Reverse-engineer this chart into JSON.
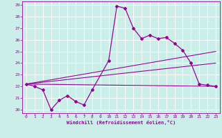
{
  "xlabel": "Windchill (Refroidissement éolien,°C)",
  "ylabel": "",
  "xlim": [
    -0.5,
    23.5
  ],
  "ylim": [
    19.7,
    29.3
  ],
  "yticks": [
    20,
    21,
    22,
    23,
    24,
    25,
    26,
    27,
    28,
    29
  ],
  "xticks": [
    0,
    1,
    2,
    3,
    4,
    5,
    6,
    7,
    8,
    9,
    10,
    11,
    12,
    13,
    14,
    15,
    16,
    17,
    18,
    19,
    20,
    21,
    22,
    23
  ],
  "bg_color": "#cceee8",
  "line_color": "#990099",
  "grid_color": "#ffffff",
  "line1_x": [
    0,
    1,
    2,
    3,
    4,
    5,
    6,
    7,
    8,
    10,
    11,
    12,
    13,
    14,
    15,
    16,
    17,
    18,
    19,
    20,
    21,
    22,
    23
  ],
  "line1_y": [
    22.2,
    22.0,
    21.7,
    20.0,
    20.8,
    21.2,
    20.7,
    20.4,
    21.7,
    24.2,
    28.9,
    28.7,
    27.0,
    26.1,
    26.4,
    26.1,
    26.2,
    25.7,
    25.1,
    24.0,
    22.2,
    22.1,
    22.0
  ],
  "line2_x": [
    0,
    23
  ],
  "line2_y": [
    22.2,
    25.0
  ],
  "line3_x": [
    0,
    23
  ],
  "line3_y": [
    22.2,
    24.0
  ],
  "line4_x": [
    0,
    23
  ],
  "line4_y": [
    22.2,
    22.0
  ]
}
